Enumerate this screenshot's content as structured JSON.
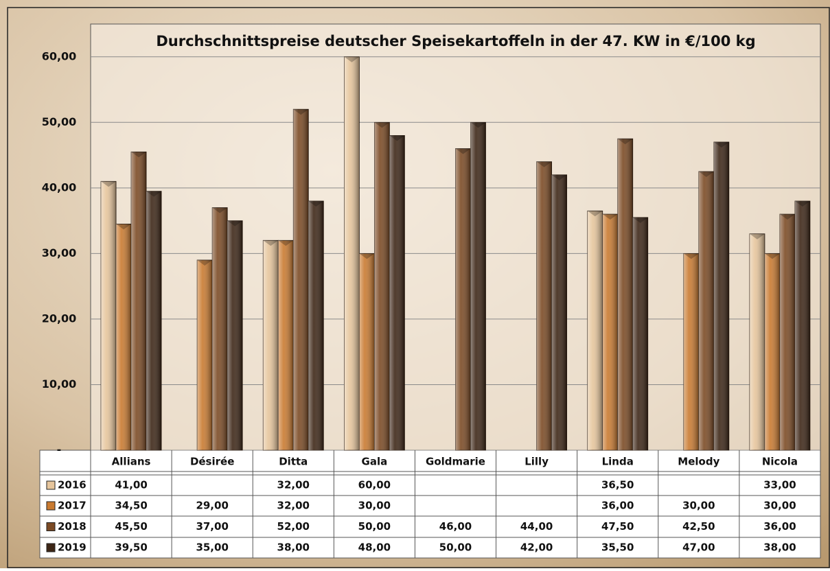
{
  "chart_data": {
    "type": "bar",
    "title": "Durchschnittspreise deutscher Speisekartoffeln in der 47. KW in €/100 kg",
    "categories": [
      "Allians",
      "Désirée",
      "Ditta",
      "Gala",
      "Goldmarie",
      "Lilly",
      "Linda",
      "Melody",
      "Nicola"
    ],
    "series": [
      {
        "name": "2016",
        "color": "#e6c59c",
        "values": [
          41,
          null,
          32,
          60,
          null,
          null,
          36.5,
          null,
          33
        ],
        "value_labels": [
          "41,00",
          null,
          "32,00",
          "60,00",
          null,
          null,
          "36,50",
          null,
          "33,00"
        ]
      },
      {
        "name": "2017",
        "color": "#c97a30",
        "values": [
          34.5,
          29,
          32,
          30,
          null,
          null,
          36,
          30,
          30
        ],
        "value_labels": [
          "34,50",
          "29,00",
          "32,00",
          "30,00",
          null,
          null,
          "36,00",
          "30,00",
          "30,00"
        ]
      },
      {
        "name": "2018",
        "color": "#7b4a24",
        "values": [
          45.5,
          37,
          52,
          50,
          46,
          44,
          47.5,
          42.5,
          36
        ],
        "value_labels": [
          "45,50",
          "37,00",
          "52,00",
          "50,00",
          "46,00",
          "44,00",
          "47,50",
          "42,50",
          "36,00"
        ]
      },
      {
        "name": "2019",
        "color": "#3d2616",
        "values": [
          39.5,
          35,
          38,
          48,
          50,
          42,
          35.5,
          47,
          38
        ],
        "value_labels": [
          "39,50",
          "35,00",
          "38,00",
          "48,00",
          "50,00",
          "42,00",
          "35,50",
          "47,00",
          "38,00"
        ]
      }
    ],
    "ylim": [
      0,
      65
    ],
    "yticks": [
      {
        "value": 0,
        "label": "-"
      },
      {
        "value": 10,
        "label": "10,00"
      },
      {
        "value": 20,
        "label": "20,00"
      },
      {
        "value": 30,
        "label": "30,00"
      },
      {
        "value": 40,
        "label": "40,00"
      },
      {
        "value": 50,
        "label": "50,00"
      },
      {
        "value": 60,
        "label": "60,00"
      }
    ],
    "grid": true
  }
}
